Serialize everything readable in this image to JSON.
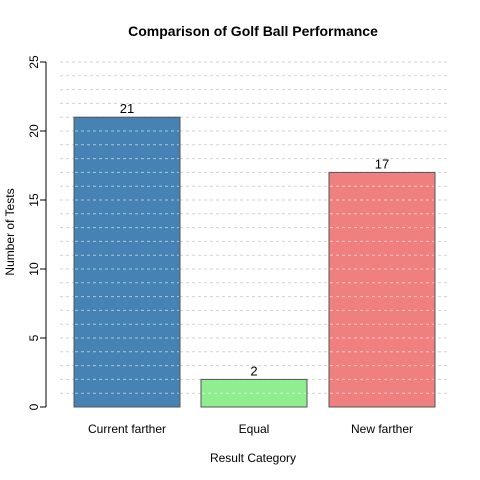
{
  "chart_data": {
    "type": "bar",
    "title": "Comparison of Golf Ball Performance",
    "xlabel": "Result Category",
    "ylabel": "Number of Tests",
    "categories": [
      "Current farther",
      "Equal",
      "New farther"
    ],
    "values": [
      21,
      2,
      17
    ],
    "data_labels": [
      "21",
      "2",
      "17"
    ],
    "colors": [
      "#4682B4",
      "#90EE90",
      "#F08080"
    ],
    "ylim": [
      0,
      25
    ],
    "yticks": [
      0,
      5,
      10,
      15,
      20,
      25
    ],
    "ytick_labels": [
      "0",
      "5",
      "10",
      "15",
      "20",
      "25"
    ],
    "grid": "horizontal-dashed",
    "grid_minor_step": 1,
    "grid_color": "#d3d3d3"
  }
}
